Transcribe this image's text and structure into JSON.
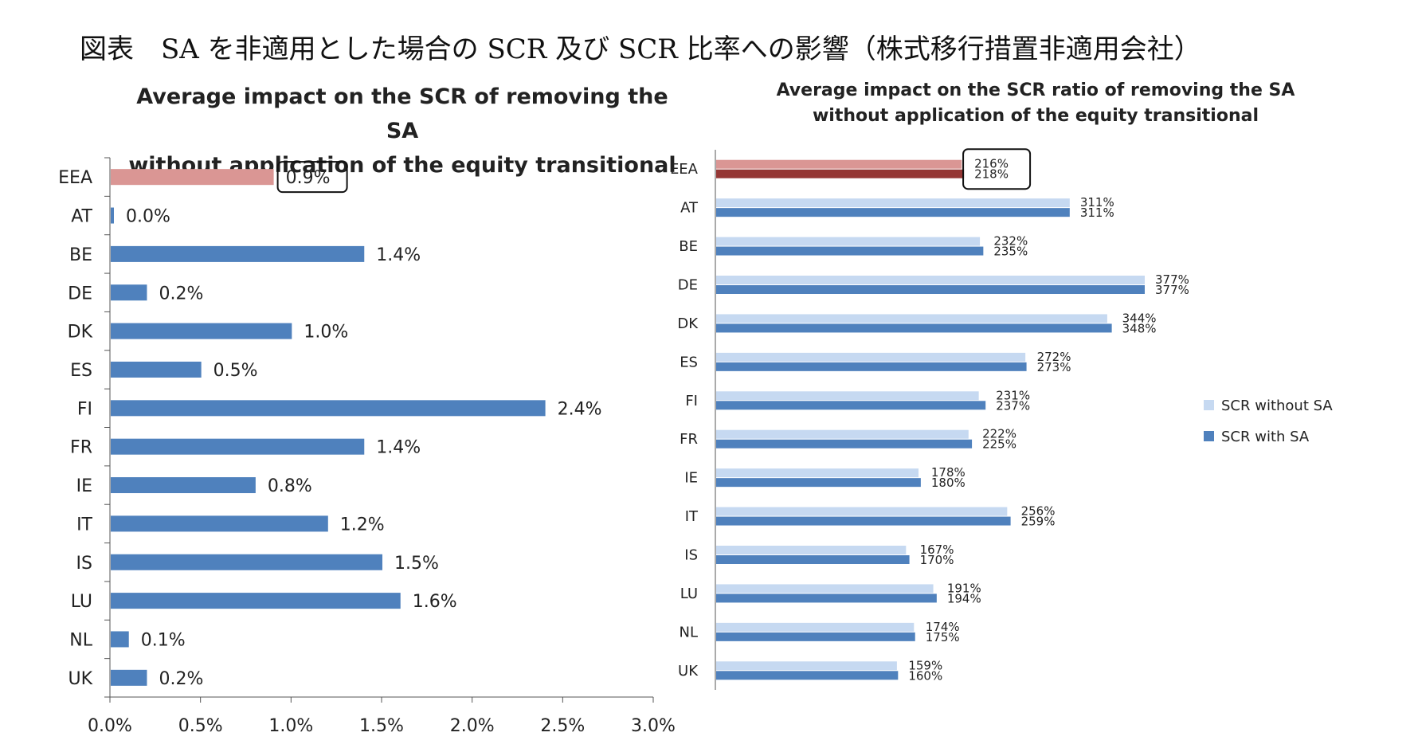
{
  "page": {
    "title": "図表　SA を非適用とした場合の SCR 及び SCR 比率への影響（株式移行措置非適用会社）"
  },
  "colors": {
    "bar_blue": "#4f81bd",
    "bar_light_blue": "#c6d9f1",
    "highlight_pink": "#da9694",
    "highlight_dark_red": "#953735",
    "axis": "#555555"
  },
  "chart_data": [
    {
      "type": "bar",
      "orientation": "horizontal",
      "title": "Average impact on the SCR of removing the SA without application of the equity transitional",
      "title_lines": [
        "Average impact on the SCR of removing the SA",
        "without application of the equity transitional"
      ],
      "categories": [
        "EEA",
        "AT",
        "BE",
        "DE",
        "DK",
        "ES",
        "FI",
        "FR",
        "IE",
        "IT",
        "IS",
        "LU",
        "NL",
        "UK"
      ],
      "values": [
        0.9,
        0.0,
        1.4,
        0.2,
        1.0,
        0.5,
        2.4,
        1.4,
        0.8,
        1.2,
        1.5,
        1.6,
        0.1,
        0.2
      ],
      "value_labels": [
        "0.9%",
        "0.0%",
        "1.4%",
        "0.2%",
        "1.0%",
        "0.5%",
        "2.4%",
        "1.4%",
        "0.8%",
        "1.2%",
        "1.5%",
        "1.6%",
        "0.1%",
        "0.2%"
      ],
      "xlim": [
        0,
        3.0
      ],
      "x_ticks": [
        "0.0%",
        "0.5%",
        "1.0%",
        "1.5%",
        "2.0%",
        "2.5%",
        "3.0%"
      ],
      "highlight": "EEA",
      "grid": false,
      "legend": false
    },
    {
      "type": "bar",
      "orientation": "horizontal",
      "title": "Average impact on the SCR ratio of removing the SA without application of the equity transitional",
      "title_lines": [
        "Average impact on the SCR ratio of removing the SA",
        "without application of the equity transitional"
      ],
      "categories": [
        "EEA",
        "AT",
        "BE",
        "DE",
        "DK",
        "ES",
        "FI",
        "FR",
        "IE",
        "IT",
        "IS",
        "LU",
        "NL",
        "UK"
      ],
      "series": [
        {
          "name": "SCR without SA",
          "values": [
            216,
            311,
            232,
            377,
            344,
            272,
            231,
            222,
            178,
            256,
            167,
            191,
            174,
            159
          ]
        },
        {
          "name": "SCR with SA",
          "values": [
            218,
            311,
            235,
            377,
            348,
            273,
            237,
            225,
            180,
            259,
            170,
            194,
            175,
            160
          ]
        }
      ],
      "xlim": [
        0,
        400
      ],
      "highlight": "EEA",
      "grid": false,
      "legend_position": "right"
    }
  ]
}
